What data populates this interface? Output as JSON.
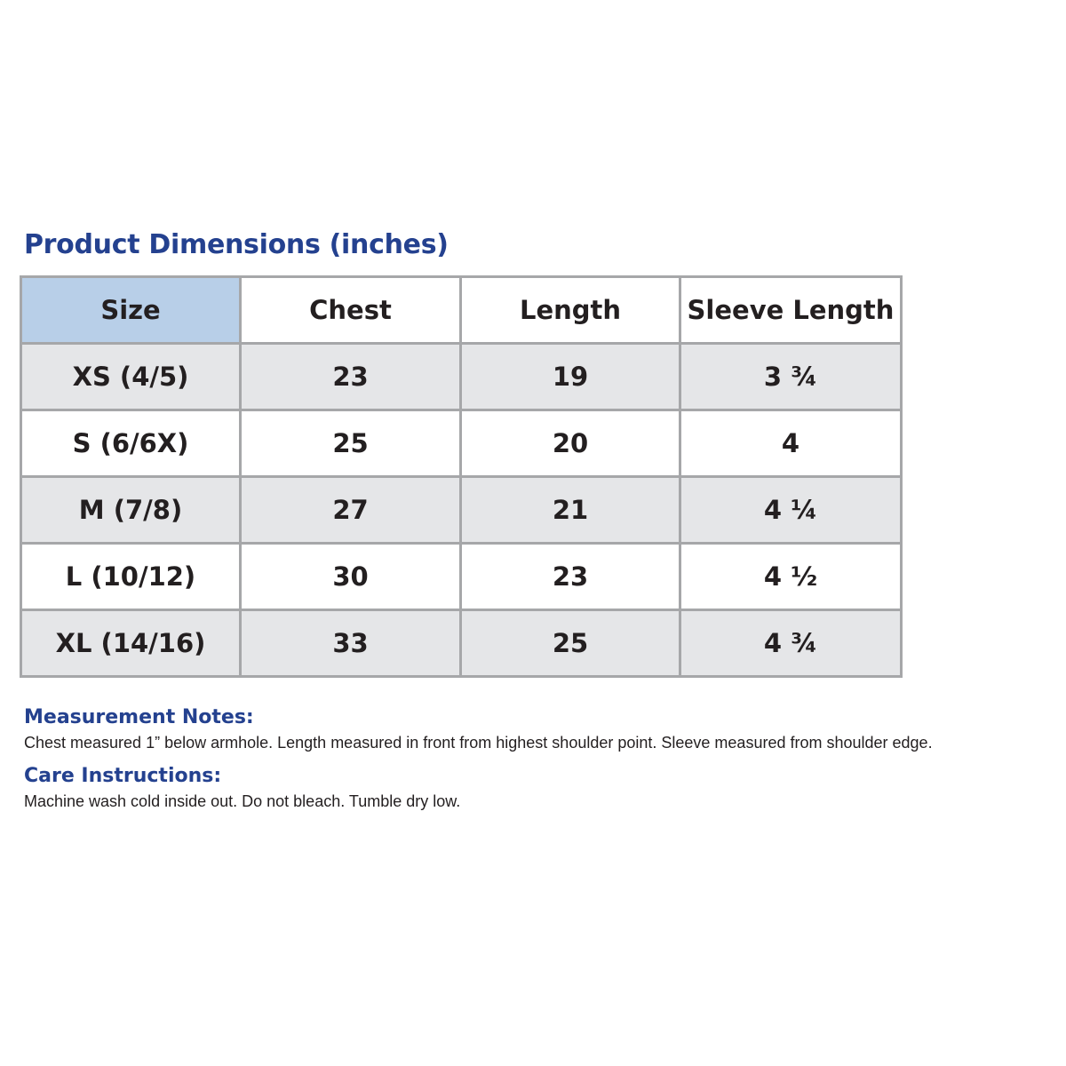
{
  "title": "Product Dimensions (inches)",
  "table": {
    "headers": [
      "Size",
      "Chest",
      "Length",
      "Sleeve Length"
    ],
    "rows": [
      [
        "XS (4/5)",
        "23",
        "19",
        "3 ¾"
      ],
      [
        "S (6/6X)",
        "25",
        "20",
        "4"
      ],
      [
        "M (7/8)",
        "27",
        "21",
        "4 ¼"
      ],
      [
        "L (10/12)",
        "30",
        "23",
        "4 ½"
      ],
      [
        "XL (14/16)",
        "33",
        "25",
        "4 ¾"
      ]
    ]
  },
  "measurement_notes": {
    "heading": "Measurement Notes:",
    "text": "Chest measured 1” below armhole. Length measured in front from highest shoulder point. Sleeve measured from shoulder edge."
  },
  "care_instructions": {
    "heading": "Care Instructions:",
    "text": "Machine wash cold inside out. Do not bleach. Tumble dry low."
  },
  "colors": {
    "heading_blue": "#24418f",
    "size_header_fill": "#b8cfe8",
    "shaded_row_fill": "#e5e6e8",
    "grid_line": "#a6a7a9",
    "text": "#231f20"
  }
}
